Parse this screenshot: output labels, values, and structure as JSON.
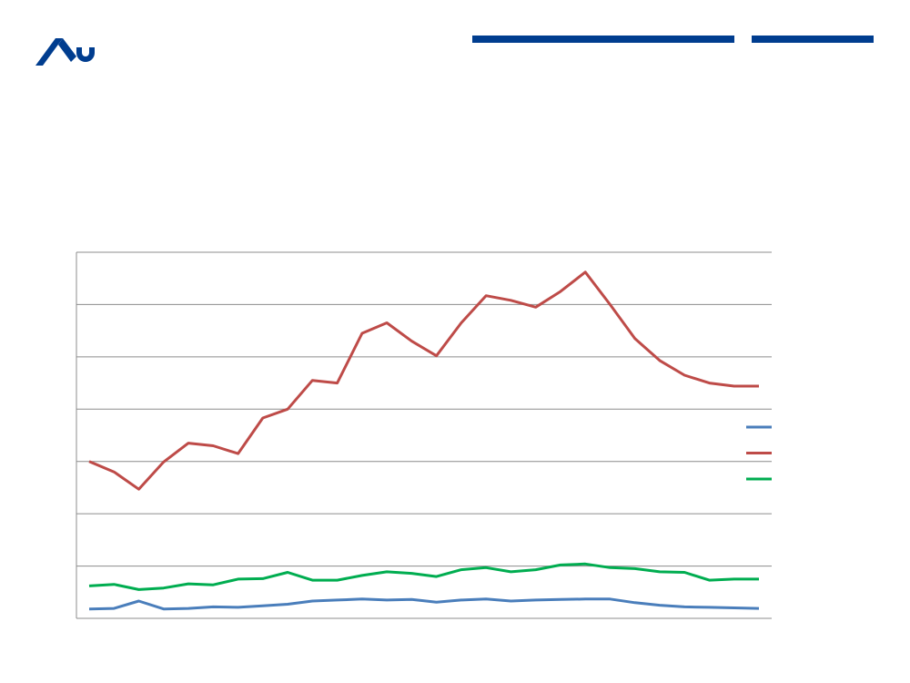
{
  "brand": {
    "logo_icon": "university-logo-icon",
    "accent_color": "#003d8f"
  },
  "chart_data": {
    "type": "line",
    "title": "",
    "xlabel": "",
    "ylabel": "",
    "ylim": [
      0,
      7
    ],
    "grid": true,
    "legend_placement": "right",
    "x": [
      1,
      2,
      3,
      4,
      5,
      6,
      7,
      8,
      9,
      10,
      11,
      12,
      13,
      14,
      15,
      16,
      17,
      18,
      19,
      20,
      21,
      22,
      23,
      24,
      25,
      26,
      27,
      28
    ],
    "series": [
      {
        "color": "#4a7ebb",
        "values": [
          0.18,
          0.19,
          0.33,
          0.18,
          0.19,
          0.22,
          0.21,
          0.24,
          0.27,
          0.33,
          0.35,
          0.37,
          0.35,
          0.36,
          0.31,
          0.35,
          0.37,
          0.33,
          0.35,
          0.36,
          0.37,
          0.37,
          0.3,
          0.25,
          0.22,
          0.21,
          0.2,
          0.19
        ]
      },
      {
        "color": "#be4b48",
        "values": [
          3.0,
          2.8,
          2.47,
          2.99,
          3.35,
          3.3,
          3.15,
          3.83,
          4.0,
          4.55,
          4.5,
          5.45,
          5.65,
          5.3,
          5.02,
          5.65,
          6.17,
          6.08,
          5.95,
          6.25,
          6.62,
          6.0,
          5.35,
          4.93,
          4.65,
          4.5,
          4.44,
          4.44
        ]
      },
      {
        "color": "#00ad50",
        "values": [
          0.62,
          0.65,
          0.55,
          0.58,
          0.66,
          0.64,
          0.75,
          0.76,
          0.88,
          0.73,
          0.73,
          0.82,
          0.89,
          0.86,
          0.8,
          0.93,
          0.97,
          0.89,
          0.93,
          1.02,
          1.04,
          0.97,
          0.95,
          0.89,
          0.88,
          0.73,
          0.75,
          0.75
        ]
      }
    ]
  }
}
